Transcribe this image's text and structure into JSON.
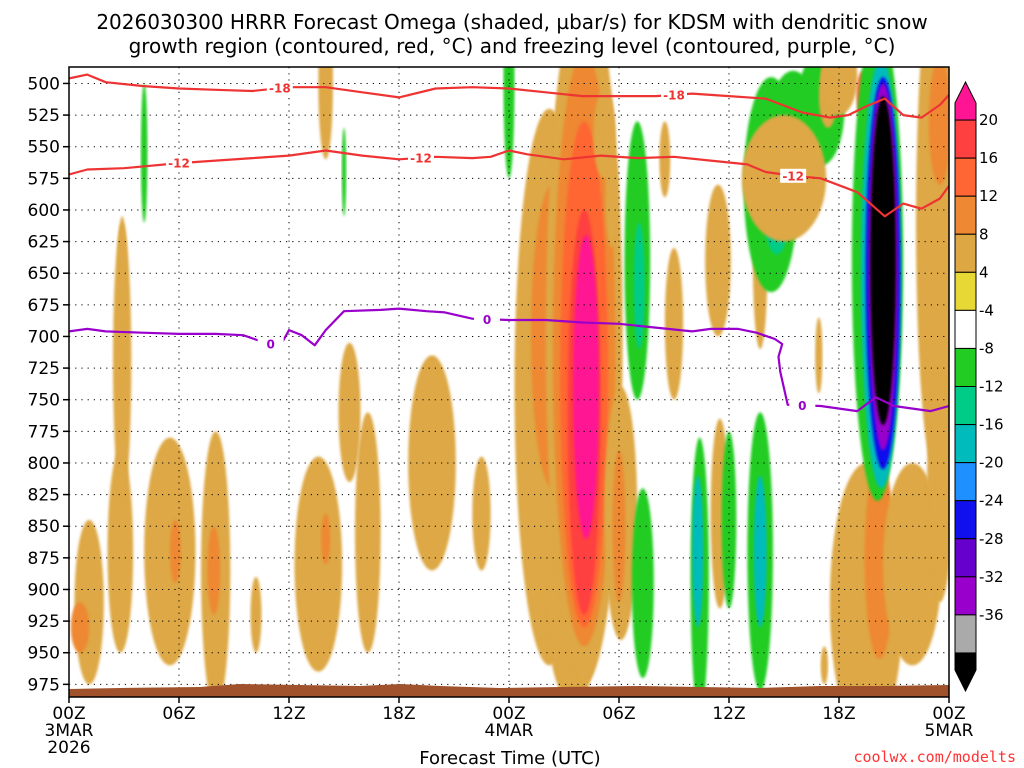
{
  "chart_data": {
    "type": "time-height cross section (shaded omega with contours)",
    "title_line1": "2026030300 HRRR Forecast Omega (shaded, µbar/s) for KDSM with dendritic snow",
    "title_line2": "growth region (contoured, red, °C) and freezing level (contoured, purple, °C)",
    "xlabel": "Forecast Time (UTC)",
    "credit": "coolwx.com/modelts",
    "y_axis": {
      "units": "hPa",
      "range": [
        487,
        985
      ],
      "ticks": [
        500,
        525,
        550,
        575,
        600,
        625,
        650,
        675,
        700,
        725,
        750,
        775,
        800,
        825,
        850,
        875,
        900,
        925,
        950,
        975
      ]
    },
    "x_axis": {
      "units": "forecast hour",
      "range": [
        0,
        48
      ],
      "ticks": [
        {
          "hour": 0,
          "lines": [
            "00Z",
            "3MAR",
            "2026"
          ]
        },
        {
          "hour": 6,
          "lines": [
            "06Z"
          ]
        },
        {
          "hour": 12,
          "lines": [
            "12Z"
          ]
        },
        {
          "hour": 18,
          "lines": [
            "18Z"
          ]
        },
        {
          "hour": 24,
          "lines": [
            "00Z",
            "4MAR"
          ]
        },
        {
          "hour": 30,
          "lines": [
            "06Z"
          ]
        },
        {
          "hour": 36,
          "lines": [
            "12Z"
          ]
        },
        {
          "hour": 42,
          "lines": [
            "18Z"
          ]
        },
        {
          "hour": 48,
          "lines": [
            "00Z",
            "5MAR"
          ]
        }
      ]
    },
    "colorbar": {
      "labels": [
        "20",
        "16",
        "12",
        "8",
        "4",
        "-4",
        "-8",
        "-12",
        "-16",
        "-20",
        "-24",
        "-28",
        "-32",
        "-36"
      ],
      "bins": [
        {
          "range": [
            20,
            99
          ],
          "color": "#ff1493"
        },
        {
          "range": [
            16,
            20
          ],
          "color": "#ff4040"
        },
        {
          "range": [
            12,
            16
          ],
          "color": "#ff6633"
        },
        {
          "range": [
            8,
            12
          ],
          "color": "#ee8833"
        },
        {
          "range": [
            4,
            8
          ],
          "color": "#dda844"
        },
        {
          "range": [
            0,
            4
          ],
          "color": "#e8d835"
        },
        {
          "range": [
            -4,
            4
          ],
          "color": "#ffffff"
        },
        {
          "range": [
            -8,
            -4
          ],
          "color": "#22cc22"
        },
        {
          "range": [
            -12,
            -8
          ],
          "color": "#00cc88"
        },
        {
          "range": [
            -16,
            -12
          ],
          "color": "#00bbbb"
        },
        {
          "range": [
            -20,
            -16
          ],
          "color": "#1e90ff"
        },
        {
          "range": [
            -24,
            -20
          ],
          "color": "#1010ee"
        },
        {
          "range": [
            -28,
            -24
          ],
          "color": "#6600cc"
        },
        {
          "range": [
            -32,
            -28
          ],
          "color": "#9900cc"
        },
        {
          "range": [
            -36,
            -32
          ],
          "color": "#aaaaaa"
        },
        {
          "range": [
            -99,
            -36
          ],
          "color": "#000000"
        }
      ]
    },
    "omega_blobs": [
      {
        "hour": 1.1,
        "p": 910,
        "rh": 0.8,
        "rp": 65,
        "value": 4
      },
      {
        "hour": 0.6,
        "p": 930,
        "rh": 0.5,
        "rp": 20,
        "value": 8
      },
      {
        "hour": 2.8,
        "p": 870,
        "rh": 0.7,
        "rp": 80,
        "value": 4
      },
      {
        "hour": 2.9,
        "p": 720,
        "rh": 0.5,
        "rp": 110,
        "value": 4
      },
      {
        "hour": 2.9,
        "p": 650,
        "rh": 0.25,
        "rp": 45,
        "value": 4
      },
      {
        "hour": 4.1,
        "p": 555,
        "rh": 0.18,
        "rp": 55,
        "value": -6
      },
      {
        "hour": 5.5,
        "p": 870,
        "rh": 1.4,
        "rp": 90,
        "value": 4
      },
      {
        "hour": 5.8,
        "p": 870,
        "rh": 0.3,
        "rp": 25,
        "value": 8
      },
      {
        "hour": 8.0,
        "p": 885,
        "rh": 0.8,
        "rp": 110,
        "value": 4
      },
      {
        "hour": 7.9,
        "p": 885,
        "rh": 0.35,
        "rp": 35,
        "value": 8
      },
      {
        "hour": 10.2,
        "p": 920,
        "rh": 0.3,
        "rp": 30,
        "value": 4
      },
      {
        "hour": 13.6,
        "p": 880,
        "rh": 1.3,
        "rp": 85,
        "value": 4
      },
      {
        "hour": 14.0,
        "p": 860,
        "rh": 0.25,
        "rp": 20,
        "value": 8
      },
      {
        "hour": 14.0,
        "p": 500,
        "rh": 0.4,
        "rp": 60,
        "value": 4
      },
      {
        "hour": 15.0,
        "p": 570,
        "rh": 0.12,
        "rp": 35,
        "value": -6
      },
      {
        "hour": 15.3,
        "p": 760,
        "rh": 0.6,
        "rp": 55,
        "value": 4
      },
      {
        "hour": 16.3,
        "p": 855,
        "rh": 0.7,
        "rp": 95,
        "value": 4
      },
      {
        "hour": 19.8,
        "p": 800,
        "rh": 1.3,
        "rp": 85,
        "value": 4
      },
      {
        "hour": 22.5,
        "p": 840,
        "rh": 0.5,
        "rp": 45,
        "value": 4
      },
      {
        "hour": 24.0,
        "p": 500,
        "rh": 0.3,
        "rp": 75,
        "value": -6
      },
      {
        "hour": 26.2,
        "p": 740,
        "rh": 1.9,
        "rp": 220,
        "value": 4
      },
      {
        "hour": 26.4,
        "p": 700,
        "rh": 1.2,
        "rp": 120,
        "value": 8
      },
      {
        "hour": 26.8,
        "p": 670,
        "rh": 0.7,
        "rp": 80,
        "value": 12
      },
      {
        "hour": 26.9,
        "p": 665,
        "rh": 0.3,
        "rp": 30,
        "value": 20
      },
      {
        "hour": 27.0,
        "p": 560,
        "rh": 0.5,
        "rp": 65,
        "value": 4
      },
      {
        "hour": 27.0,
        "p": 650,
        "rh": 0.8,
        "rp": 120,
        "value": 4
      },
      {
        "hour": 27.5,
        "p": 920,
        "rh": 1.4,
        "rp": 70,
        "value": 4
      },
      {
        "hour": 28.1,
        "p": 700,
        "rh": 2.1,
        "rp": 275,
        "value": 4
      },
      {
        "hour": 28.1,
        "p": 710,
        "rh": 1.7,
        "rp": 235,
        "value": 8
      },
      {
        "hour": 28.1,
        "p": 730,
        "rh": 1.3,
        "rp": 200,
        "value": 12
      },
      {
        "hour": 28.1,
        "p": 760,
        "rh": 0.9,
        "rp": 160,
        "value": 16
      },
      {
        "hour": 28.2,
        "p": 740,
        "rh": 0.7,
        "rp": 120,
        "value": 20
      },
      {
        "hour": 29.2,
        "p": 540,
        "rh": 0.6,
        "rp": 35,
        "value": 4
      },
      {
        "hour": 30.1,
        "p": 840,
        "rh": 0.9,
        "rp": 100,
        "value": 4
      },
      {
        "hour": 30.0,
        "p": 850,
        "rh": 0.35,
        "rp": 60,
        "value": 8
      },
      {
        "hour": 29.6,
        "p": 590,
        "rh": 0.35,
        "rp": 40,
        "value": 4
      },
      {
        "hour": 31.0,
        "p": 640,
        "rh": 0.7,
        "rp": 110,
        "value": -6
      },
      {
        "hour": 31.1,
        "p": 660,
        "rh": 0.3,
        "rp": 50,
        "value": -10
      },
      {
        "hour": 31.3,
        "p": 895,
        "rh": 0.6,
        "rp": 75,
        "value": -6
      },
      {
        "hour": 32.5,
        "p": 560,
        "rh": 0.3,
        "rp": 30,
        "value": 4
      },
      {
        "hour": 33.0,
        "p": 690,
        "rh": 0.5,
        "rp": 60,
        "value": 4
      },
      {
        "hour": 34.4,
        "p": 890,
        "rh": 0.5,
        "rp": 110,
        "value": -6
      },
      {
        "hour": 34.3,
        "p": 870,
        "rh": 0.3,
        "rp": 60,
        "value": -14
      },
      {
        "hour": 35.5,
        "p": 840,
        "rh": 0.5,
        "rp": 75,
        "value": 4
      },
      {
        "hour": 35.4,
        "p": 640,
        "rh": 0.7,
        "rp": 60,
        "value": 4
      },
      {
        "hour": 36.0,
        "p": 845,
        "rh": 0.4,
        "rp": 70,
        "value": -6
      },
      {
        "hour": 37.7,
        "p": 870,
        "rh": 0.7,
        "rp": 110,
        "value": -6
      },
      {
        "hour": 37.7,
        "p": 870,
        "rh": 0.35,
        "rp": 60,
        "value": -14
      },
      {
        "hour": 37.7,
        "p": 640,
        "rh": 0.4,
        "rp": 70,
        "value": 4
      },
      {
        "hour": 38.3,
        "p": 580,
        "rh": 1.5,
        "rp": 85,
        "value": -6
      },
      {
        "hour": 38.6,
        "p": 590,
        "rh": 0.8,
        "rp": 45,
        "value": -10
      },
      {
        "hour": 39.5,
        "p": 545,
        "rh": 1.5,
        "rp": 55,
        "value": -6
      },
      {
        "hour": 41.0,
        "p": 520,
        "rh": 1.3,
        "rp": 45,
        "value": -6
      },
      {
        "hour": 39.0,
        "p": 575,
        "rh": 2.3,
        "rp": 50,
        "value": 4
      },
      {
        "hour": 40.9,
        "p": 715,
        "rh": 0.2,
        "rp": 30,
        "value": 4
      },
      {
        "hour": 41.4,
        "p": 510,
        "rh": 0.5,
        "rp": 25,
        "value": 4
      },
      {
        "hour": 42.0,
        "p": 495,
        "rh": 1.0,
        "rp": 30,
        "value": 4
      },
      {
        "hour": 41.2,
        "p": 960,
        "rh": 0.2,
        "rp": 15,
        "value": 4
      },
      {
        "hour": 43.5,
        "p": 910,
        "rh": 2.0,
        "rp": 110,
        "value": 4
      },
      {
        "hour": 44.2,
        "p": 875,
        "rh": 0.8,
        "rp": 80,
        "value": 8
      },
      {
        "hour": 46.0,
        "p": 880,
        "rh": 1.6,
        "rp": 80,
        "value": 4
      },
      {
        "hour": 47.3,
        "p": 610,
        "rh": 1.1,
        "rp": 200,
        "value": 4
      },
      {
        "hour": 47.5,
        "p": 530,
        "rh": 0.6,
        "rp": 50,
        "value": 8
      },
      {
        "hour": 47.5,
        "p": 820,
        "rh": 0.7,
        "rp": 90,
        "value": 4
      },
      {
        "hour": 43.3,
        "p": 510,
        "rh": 0.35,
        "rp": 20,
        "value": 12
      },
      {
        "hour": 43.3,
        "p": 530,
        "rh": 0.2,
        "rp": 20,
        "value": 20
      },
      {
        "hour": 44.1,
        "p": 640,
        "rh": 1.4,
        "rp": 190,
        "value": -6
      },
      {
        "hour": 44.3,
        "p": 650,
        "rh": 1.1,
        "rp": 170,
        "value": -14
      },
      {
        "hour": 44.4,
        "p": 650,
        "rh": 0.95,
        "rp": 155,
        "value": -22
      },
      {
        "hour": 44.4,
        "p": 645,
        "rh": 0.8,
        "rp": 145,
        "value": -30
      },
      {
        "hour": 44.4,
        "p": 640,
        "rh": 0.7,
        "rp": 130,
        "value": -38
      }
    ],
    "contours": {
      "dgz_minus18": {
        "color": "#ee3333",
        "label": "-18",
        "label_hours": [
          11.5,
          33.0
        ],
        "points": [
          [
            0,
            496
          ],
          [
            1,
            493
          ],
          [
            2,
            499
          ],
          [
            4,
            502
          ],
          [
            6,
            504
          ],
          [
            8,
            505
          ],
          [
            10,
            506
          ],
          [
            12,
            503
          ],
          [
            14,
            503
          ],
          [
            16,
            507
          ],
          [
            18,
            511
          ],
          [
            20,
            504
          ],
          [
            22,
            503
          ],
          [
            24,
            504
          ],
          [
            26,
            507
          ],
          [
            28,
            510
          ],
          [
            30,
            510
          ],
          [
            32,
            510
          ],
          [
            34,
            508
          ],
          [
            36,
            510
          ],
          [
            38,
            512
          ],
          [
            40,
            523
          ],
          [
            41.5,
            527
          ],
          [
            42.5,
            525
          ],
          [
            43.5,
            518
          ],
          [
            44.5,
            512
          ],
          [
            45.5,
            525
          ],
          [
            46.5,
            527
          ],
          [
            47.5,
            517
          ],
          [
            48,
            509
          ]
        ]
      },
      "dgz_minus12": {
        "color": "#ee3333",
        "label": "-12",
        "label_hours": [
          6.0,
          19.2,
          39.5
        ],
        "points": [
          [
            0,
            572
          ],
          [
            1,
            568
          ],
          [
            3,
            567
          ],
          [
            6,
            563
          ],
          [
            8,
            561
          ],
          [
            10,
            559
          ],
          [
            12,
            557
          ],
          [
            14,
            553
          ],
          [
            16,
            557
          ],
          [
            18,
            560
          ],
          [
            20,
            558
          ],
          [
            22,
            559
          ],
          [
            23,
            558
          ],
          [
            24,
            553
          ],
          [
            25,
            556
          ],
          [
            27,
            560
          ],
          [
            29,
            557
          ],
          [
            31,
            559
          ],
          [
            33,
            558
          ],
          [
            35,
            561
          ],
          [
            37,
            564
          ],
          [
            38,
            570
          ],
          [
            39.5,
            573
          ],
          [
            41,
            575
          ],
          [
            43,
            586
          ],
          [
            44.5,
            605
          ],
          [
            45.5,
            595
          ],
          [
            46.5,
            599
          ],
          [
            47.5,
            591
          ],
          [
            48,
            581
          ]
        ]
      },
      "freezing_0": {
        "color": "#9900cc",
        "label": "0",
        "label_hours": [
          11.0,
          22.8,
          40.0
        ],
        "points": [
          [
            0,
            696
          ],
          [
            1,
            694
          ],
          [
            2,
            696
          ],
          [
            4,
            697
          ],
          [
            6,
            698
          ],
          [
            8,
            698
          ],
          [
            9.5,
            699
          ],
          [
            10.5,
            704
          ],
          [
            11.5,
            708
          ],
          [
            12,
            695
          ],
          [
            12.7,
            699
          ],
          [
            13.4,
            707
          ],
          [
            14,
            695
          ],
          [
            15,
            680
          ],
          [
            17,
            679
          ],
          [
            18,
            678
          ],
          [
            19.5,
            680
          ],
          [
            20.5,
            681
          ],
          [
            22,
            686
          ],
          [
            24,
            687
          ],
          [
            26,
            687
          ],
          [
            28,
            689
          ],
          [
            30,
            690
          ],
          [
            32,
            693
          ],
          [
            34,
            696
          ],
          [
            35,
            694
          ],
          [
            36.5,
            694
          ],
          [
            37.5,
            697
          ],
          [
            38.5,
            702
          ],
          [
            38.9,
            706
          ],
          [
            38.7,
            716
          ],
          [
            38.8,
            728
          ],
          [
            39.2,
            754
          ],
          [
            41,
            755
          ],
          [
            43,
            759
          ],
          [
            44,
            748
          ],
          [
            45,
            755
          ],
          [
            47,
            759
          ],
          [
            48,
            755
          ]
        ]
      }
    }
  }
}
